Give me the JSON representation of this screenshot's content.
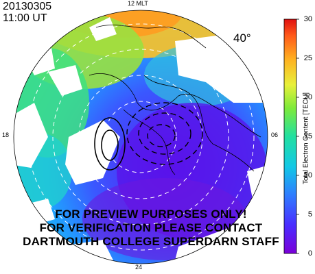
{
  "header": {
    "date": "20130305",
    "time": "11:00 UT"
  },
  "map": {
    "noon_label": "12 MLT",
    "midnight_label": "24",
    "dusk_label": "18",
    "dawn_label": "06",
    "min_latitude_label": "40°"
  },
  "colorbar": {
    "title": "Total Electron Content [TECU]",
    "range": [
      0,
      30
    ],
    "ticks": [
      "0",
      "5",
      "10",
      "15",
      "20",
      "25",
      "30"
    ]
  },
  "watermark": {
    "line1": "FOR PREVIEW PURPOSES ONLY!",
    "line2": "FOR VERIFICATION PLEASE CONTACT",
    "line3": "DARTMOUTH COLLEGE SUPERDARN STAFF"
  }
}
